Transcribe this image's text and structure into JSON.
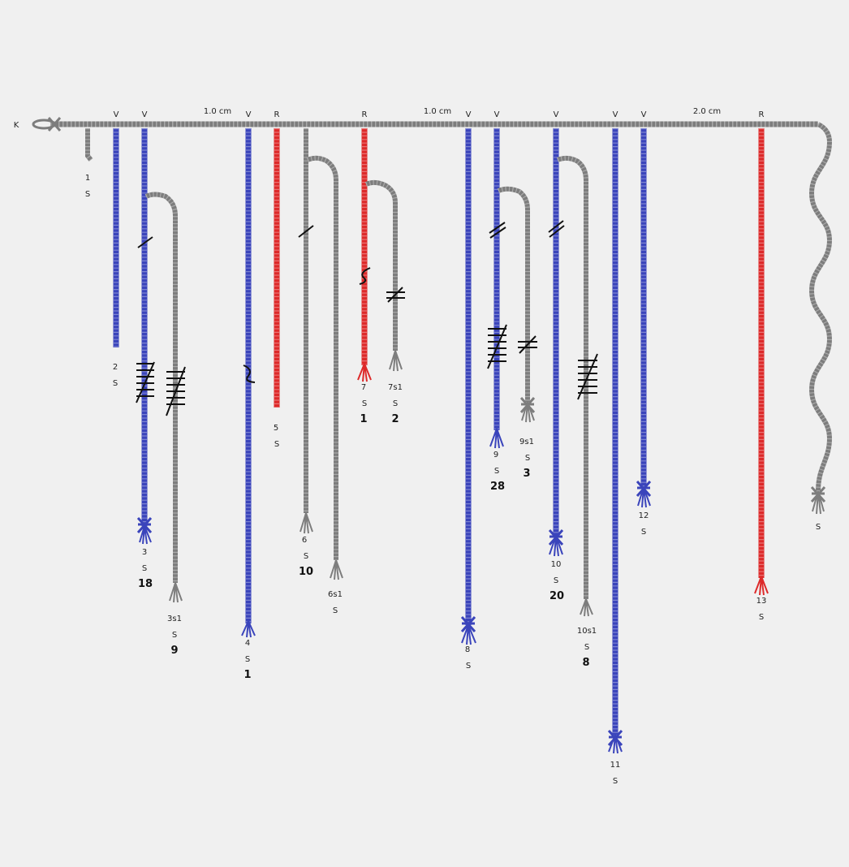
{
  "primary": {
    "label": "K",
    "spacing_labels": [
      "1.0 cm",
      "1.0 cm",
      "2.0 cm"
    ]
  },
  "colors": {
    "V": "#3a44bb",
    "R": "#dd2a2a",
    "gray": "#808080",
    "knot": "#111111"
  },
  "cords": [
    {
      "id": "c1",
      "label": "1",
      "twist": "S",
      "color": null,
      "value": null
    },
    {
      "id": "c2",
      "label": "2",
      "twist": "S",
      "color": "V",
      "value": null
    },
    {
      "id": "c3",
      "label": "3",
      "twist": "S",
      "color": "V",
      "value": "18"
    },
    {
      "id": "c3s1",
      "label": "3s1",
      "twist": "S",
      "color": null,
      "value": "9"
    },
    {
      "id": "c4",
      "label": "4",
      "twist": "S",
      "color": "V",
      "value": "1"
    },
    {
      "id": "c5",
      "label": "5",
      "twist": "S",
      "color": "R",
      "value": null
    },
    {
      "id": "c6",
      "label": "6",
      "twist": "S",
      "color": null,
      "value": "10"
    },
    {
      "id": "c6s1",
      "label": "6s1",
      "twist": "S",
      "color": null,
      "value": null
    },
    {
      "id": "c7",
      "label": "7",
      "twist": "S",
      "color": "R",
      "value": "1"
    },
    {
      "id": "c7s1",
      "label": "7s1",
      "twist": "S",
      "color": null,
      "value": "2"
    },
    {
      "id": "c8",
      "label": "8",
      "twist": "S",
      "color": "V",
      "value": null
    },
    {
      "id": "c9",
      "label": "9",
      "twist": "S",
      "color": "V",
      "value": "28"
    },
    {
      "id": "c9s1",
      "label": "9s1",
      "twist": "S",
      "color": null,
      "value": "3"
    },
    {
      "id": "c10",
      "label": "10",
      "twist": "S",
      "color": "V",
      "value": "20"
    },
    {
      "id": "c10s1",
      "label": "10s1",
      "twist": "S",
      "color": null,
      "value": "8"
    },
    {
      "id": "c11",
      "label": "11",
      "twist": "S",
      "color": "V",
      "value": null
    },
    {
      "id": "c12",
      "label": "12",
      "twist": "S",
      "color": "V",
      "value": null
    },
    {
      "id": "c13",
      "label": "13",
      "twist": "S",
      "color": "R",
      "value": null
    },
    {
      "id": "c14",
      "label": "",
      "twist": "S",
      "color": null,
      "value": null
    }
  ]
}
